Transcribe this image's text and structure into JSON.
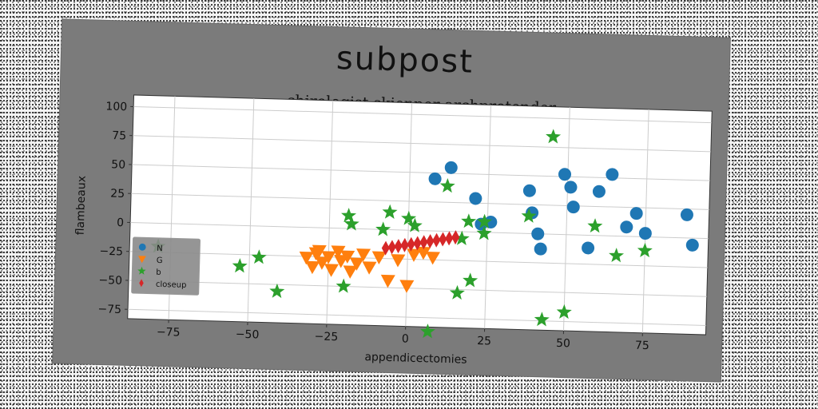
{
  "chart_data": {
    "type": "scatter",
    "title": "subpost",
    "subtitle": "chirologist skiepper archpretender",
    "xlabel": "appendicectomies",
    "ylabel": "flambeaux",
    "xlim": [
      -88,
      95
    ],
    "ylim": [
      -83,
      110
    ],
    "xticks": [
      -75,
      -50,
      -25,
      0,
      25,
      50,
      75
    ],
    "yticks": [
      -75,
      -50,
      -25,
      0,
      25,
      50,
      75,
      100
    ],
    "grid": true,
    "legend_position": "lower-left",
    "series": [
      {
        "name": "N",
        "marker": "circle",
        "color": "#1f77b4",
        "points": [
          [
            8,
            45
          ],
          [
            13,
            55
          ],
          [
            21,
            29
          ],
          [
            23,
            7
          ],
          [
            26,
            9
          ],
          [
            38,
            37
          ],
          [
            39,
            18
          ],
          [
            41,
            0
          ],
          [
            42,
            -13
          ],
          [
            49,
            52
          ],
          [
            51,
            41
          ],
          [
            52,
            24
          ],
          [
            57,
            -11
          ],
          [
            60,
            38
          ],
          [
            64,
            53
          ],
          [
            69,
            8
          ],
          [
            72,
            20
          ],
          [
            75,
            3
          ],
          [
            88,
            20
          ],
          [
            90,
            -6
          ]
        ]
      },
      {
        "name": "G",
        "marker": "triangle-down",
        "color": "#ff7f0e",
        "points": [
          [
            -32,
            -26
          ],
          [
            -30,
            -34
          ],
          [
            -29,
            -22
          ],
          [
            -28,
            -20
          ],
          [
            -27,
            -30
          ],
          [
            -25,
            -25
          ],
          [
            -24,
            -36
          ],
          [
            -22,
            -20
          ],
          [
            -21,
            -28
          ],
          [
            -19,
            -24
          ],
          [
            -18,
            -37
          ],
          [
            -16,
            -30
          ],
          [
            -14,
            -22
          ],
          [
            -12,
            -33
          ],
          [
            -9,
            -24
          ],
          [
            -6,
            -44
          ],
          [
            -3,
            -26
          ],
          [
            0,
            -48
          ],
          [
            2,
            -21
          ],
          [
            5,
            -19
          ],
          [
            8,
            -23
          ]
        ]
      },
      {
        "name": "b",
        "marker": "star",
        "color": "#2ca02c",
        "points": [
          [
            -79,
            -20
          ],
          [
            -53,
            -35
          ],
          [
            -47,
            -27
          ],
          [
            -41,
            -56
          ],
          [
            -20,
            -50
          ],
          [
            -19,
            11
          ],
          [
            -18,
            4
          ],
          [
            -8,
            0
          ],
          [
            -6,
            15
          ],
          [
            0,
            10
          ],
          [
            2,
            4
          ],
          [
            7,
            -87
          ],
          [
            12,
            39
          ],
          [
            16,
            -53
          ],
          [
            17,
            -6
          ],
          [
            19,
            9
          ],
          [
            20,
            -42
          ],
          [
            24,
            -1
          ],
          [
            24,
            9
          ],
          [
            38,
            15
          ],
          [
            43,
            -74
          ],
          [
            45,
            84
          ],
          [
            50,
            -67
          ],
          [
            59,
            8
          ],
          [
            66,
            -17
          ],
          [
            75,
            -12
          ]
        ]
      },
      {
        "name": "closeup",
        "marker": "thin-diamond",
        "color": "#d62728",
        "points": [
          [
            -7,
            -16
          ],
          [
            -5,
            -15
          ],
          [
            -3,
            -14
          ],
          [
            -1,
            -13
          ],
          [
            1,
            -12
          ],
          [
            3,
            -11
          ],
          [
            5,
            -10
          ],
          [
            7,
            -9
          ],
          [
            9,
            -8
          ],
          [
            11,
            -7
          ],
          [
            13,
            -6
          ],
          [
            15,
            -5
          ]
        ]
      }
    ]
  }
}
